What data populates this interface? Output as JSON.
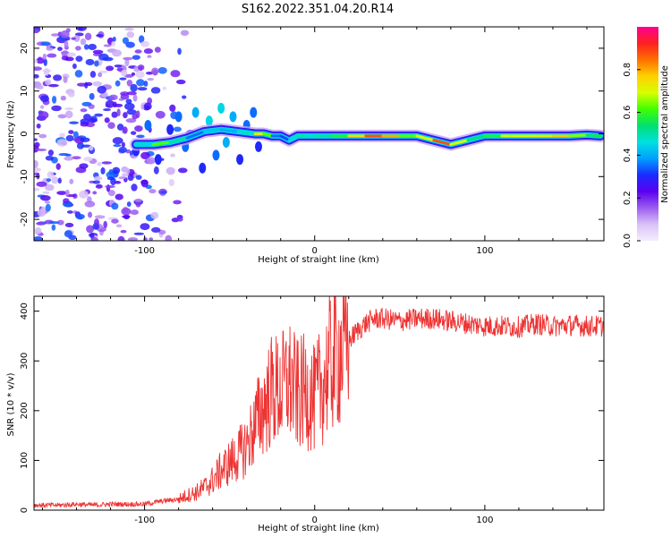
{
  "title": "S162.2022.351.04.20.R14",
  "chart_data": [
    {
      "type": "heatmap",
      "xlabel": "Height of straight line (km)",
      "ylabel": "Frequency (Hz)",
      "xlim": [
        -165,
        170
      ],
      "ylim": [
        -25,
        25
      ],
      "x_ticks": [
        -100,
        0,
        100
      ],
      "y_ticks": [
        -20,
        -10,
        0,
        10,
        20
      ],
      "colorbar": {
        "label": "Normalized spectral amplitude",
        "range": [
          0.0,
          1.0
        ],
        "ticks": [
          0.0,
          0.2,
          0.4,
          0.6,
          0.8
        ],
        "colors": [
          "#f4eefc",
          "#d9c2f8",
          "#9b5cf0",
          "#5a00f0",
          "#1a2cff",
          "#00a0ff",
          "#00e0e0",
          "#00e070",
          "#40ff00",
          "#d8ff00",
          "#ffd000",
          "#ff7000",
          "#ff2020",
          "#ff0090"
        ]
      },
      "signal_trace": {
        "x": [
          -105,
          -95,
          -85,
          -75,
          -65,
          -55,
          -45,
          -35,
          -30,
          -25,
          -20,
          -15,
          -10,
          -5,
          0,
          10,
          20,
          30,
          40,
          50,
          60,
          70,
          80,
          90,
          100,
          110,
          120,
          130,
          140,
          150,
          160,
          168
        ],
        "y": [
          -2.5,
          -2.5,
          -2.0,
          -1.0,
          0.5,
          1.0,
          0.5,
          0.0,
          0.0,
          -0.5,
          -0.5,
          -1.5,
          -0.5,
          -0.5,
          -0.5,
          -0.5,
          -0.5,
          -0.5,
          -0.5,
          -0.5,
          -0.5,
          -1.5,
          -2.5,
          -1.5,
          -0.5,
          -0.5,
          -0.5,
          -0.5,
          -0.5,
          -0.5,
          -0.3,
          -0.5
        ],
        "amplitude": [
          0.35,
          0.55,
          0.7,
          0.3,
          0.4,
          0.45,
          0.35,
          0.6,
          0.85,
          0.4,
          0.3,
          0.35,
          0.55,
          0.45,
          0.5,
          0.5,
          0.65,
          0.85,
          0.9,
          0.7,
          0.55,
          0.85,
          0.9,
          0.5,
          0.55,
          0.6,
          0.8,
          0.6,
          0.85,
          0.7,
          0.6,
          0.5
        ]
      },
      "scatter_blobs": {
        "x": [
          -105,
          -98,
          -92,
          -85,
          -80,
          -76,
          -70,
          -66,
          -62,
          -58,
          -55,
          -52,
          -48,
          -44,
          -40,
          -36,
          -33
        ],
        "y": [
          -4,
          2,
          -6,
          1,
          4,
          -3,
          5,
          -8,
          3,
          -5,
          6,
          -2,
          4,
          -6,
          2,
          5,
          -3
        ],
        "amplitude": [
          0.3,
          0.35,
          0.3,
          0.3,
          0.35,
          0.35,
          0.4,
          0.3,
          0.45,
          0.35,
          0.45,
          0.4,
          0.4,
          0.3,
          0.35,
          0.35,
          0.3
        ]
      }
    },
    {
      "type": "line",
      "xlabel": "Height of straight line (km)",
      "ylabel": "SNR (10 * v/v)",
      "xlim": [
        -165,
        170
      ],
      "ylim": [
        0,
        430
      ],
      "x_ticks": [
        -100,
        0,
        100
      ],
      "y_ticks": [
        0,
        100,
        200,
        300,
        400
      ],
      "color": "#ee3333",
      "series": [
        {
          "x": [
            -165,
            -150,
            -140,
            -130,
            -120,
            -110,
            -100,
            -90,
            -85,
            -80,
            -75,
            -70,
            -65,
            -60,
            -55,
            -50,
            -45,
            -40,
            -35,
            -30,
            -25,
            -20,
            -15,
            -10,
            -5,
            0,
            5,
            10,
            15,
            20,
            25,
            30,
            35,
            40,
            50,
            60,
            70,
            80,
            90,
            100,
            110,
            120,
            130,
            140,
            150,
            160,
            168
          ],
          "y": [
            10,
            10,
            12,
            10,
            12,
            12,
            12,
            18,
            20,
            22,
            30,
            35,
            45,
            60,
            80,
            95,
            110,
            130,
            170,
            210,
            240,
            240,
            260,
            230,
            240,
            220,
            260,
            300,
            320,
            340,
            360,
            375,
            385,
            385,
            380,
            385,
            385,
            380,
            375,
            370,
            370,
            368,
            375,
            370,
            372,
            370,
            370
          ]
        }
      ]
    }
  ]
}
